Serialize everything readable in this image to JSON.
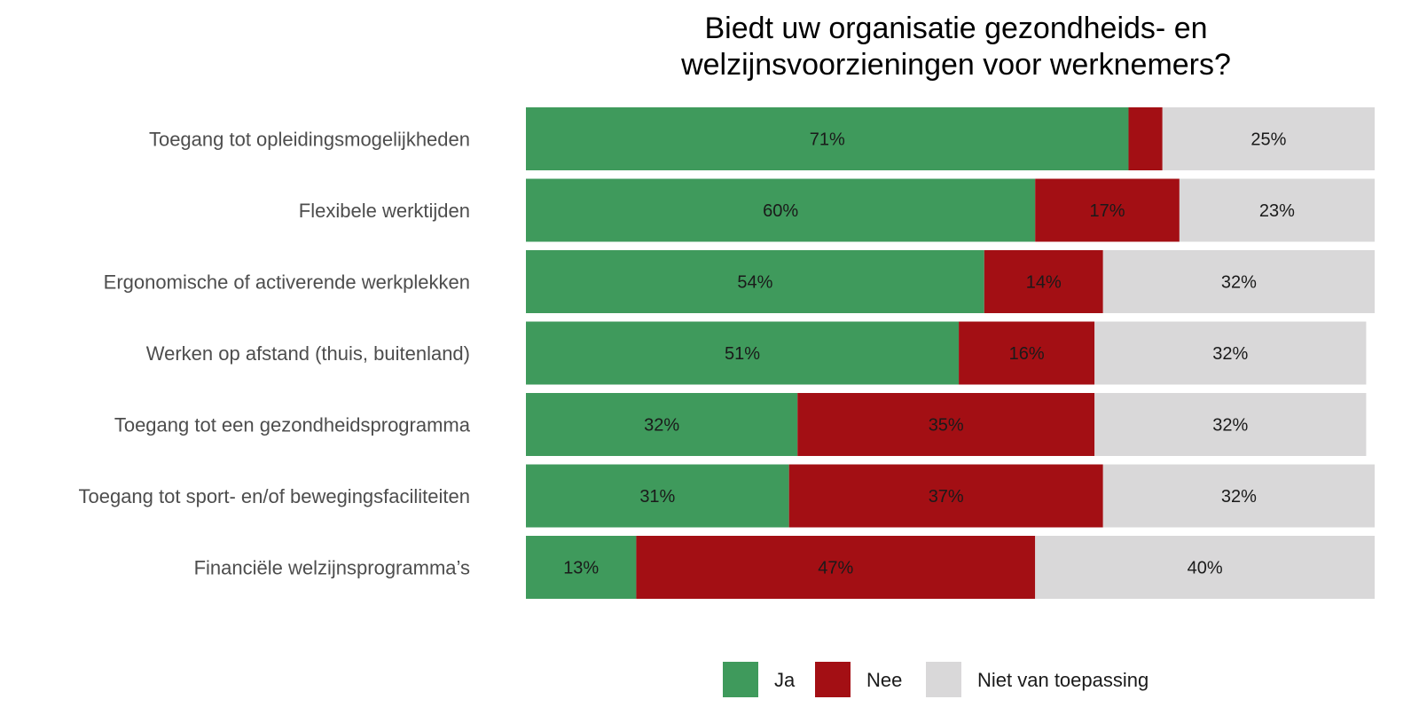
{
  "chart_data": {
    "type": "bar",
    "orientation": "horizontal",
    "stacked": true,
    "title": "Biedt uw organisatie gezondheids- en welzijnsvoorzieningen voor werknemers?",
    "title_lines": [
      "Biedt uw organisatie gezondheids- en",
      "welzijnsvoorzieningen voor werknemers?"
    ],
    "categories": [
      "Toegang tot opleidingsmogelijkheden",
      "Flexibele werktijden",
      "Ergonomische of activerende werkplekken",
      "Werken op afstand (thuis, buitenland)",
      "Toegang tot een gezondheidsprogramma",
      "Toegang tot sport- en/of bewegingsfaciliteiten",
      "Financiële welzijnsprogramma’s"
    ],
    "series": [
      {
        "name": "Ja",
        "color": "#3f9a5c",
        "values": [
          71,
          60,
          54,
          51,
          32,
          31,
          13
        ],
        "labels": [
          "71%",
          "60%",
          "54%",
          "51%",
          "32%",
          "31%",
          "13%"
        ]
      },
      {
        "name": "Nee",
        "color": "#a30f14",
        "values": [
          4,
          17,
          14,
          16,
          35,
          37,
          47
        ],
        "labels": [
          "",
          "17%",
          "14%",
          "16%",
          "35%",
          "37%",
          "47%"
        ]
      },
      {
        "name": "Niet van toepassing",
        "color": "#d9d8d9",
        "values": [
          25,
          23,
          32,
          32,
          32,
          32,
          40
        ],
        "labels": [
          "25%",
          "23%",
          "32%",
          "32%",
          "32%",
          "32%",
          "40%"
        ]
      }
    ],
    "xlim": [
      0,
      100
    ],
    "grid": false,
    "legend_position": "bottom"
  }
}
